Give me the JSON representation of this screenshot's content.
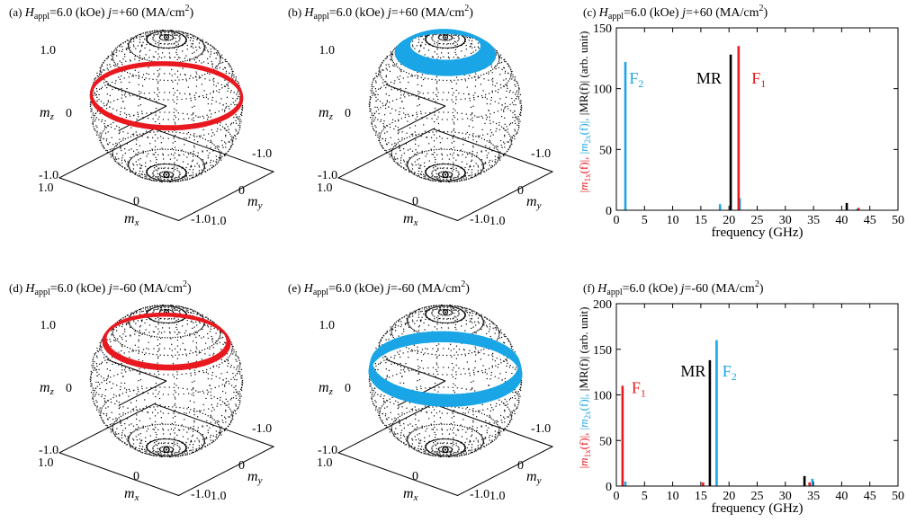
{
  "colors": {
    "red": "#e8191f",
    "cyan": "#1aa6e6",
    "black": "#000000"
  },
  "header_parts": {
    "H": "H",
    "appl": "appl",
    "field": "=6.0 (kOe)",
    "j": "j",
    "cur_pos": "=+60 (MA/cm",
    "cur_neg": "=-60 (MA/cm",
    "sup2": "2",
    "close": ")"
  },
  "sphere_text": {
    "mz_m": "m",
    "mz_sub": "z",
    "mz_zero": "0",
    "mz_top": "1.0",
    "mz_bottom": "-1.0",
    "mx_m": "m",
    "mx_sub": "x",
    "mx_left": "1.0",
    "mx_zero": "0",
    "my_m": "m",
    "my_sub": "y",
    "my_right": "-1.0",
    "my_zero": "0",
    "corner": "-1.0",
    "corner_one": "1.0"
  },
  "ylabel_parts": {
    "bar_open": "|",
    "m": "m",
    "sub1x": "1x",
    "sub2x": "2x",
    "f_arg": "(f)|, ",
    "mr_text": "|MR(f)| (arb. unit)"
  },
  "spheres": [
    {
      "id": "sphere-a",
      "panel": "(a)",
      "current": "+60",
      "ring_color": "red",
      "ring_z": 0.15,
      "ring_width": 0.04
    },
    {
      "id": "sphere-b",
      "panel": "(b)",
      "current": "+60",
      "ring_color": "cyan",
      "ring_z": 0.82,
      "ring_width": 0.12
    },
    {
      "id": "sphere-d",
      "panel": "(d)",
      "current": "-60",
      "ring_color": "red",
      "ring_z": 0.58,
      "ring_width": 0.04
    },
    {
      "id": "sphere-e",
      "panel": "(e)",
      "current": "-60",
      "ring_color": "cyan",
      "ring_z": 0.18,
      "ring_width": 0.14
    }
  ],
  "chart_data": [
    {
      "type": "bar",
      "panel": "(c)",
      "current": "+60",
      "xlabel": "frequency (GHz)",
      "xlim": [
        0,
        50
      ],
      "ylim": [
        0,
        150
      ],
      "xticks": [
        0,
        5,
        10,
        15,
        20,
        25,
        30,
        35,
        40,
        45,
        50
      ],
      "yticks": [
        0,
        50,
        100,
        150
      ],
      "series": [
        {
          "name": "F",
          "sub": "2",
          "color": "cyan",
          "x": [
            1.6,
            18.4,
            21.9,
            42.7
          ],
          "values": [
            122,
            5,
            10,
            1
          ]
        },
        {
          "name": "MR",
          "sub": "",
          "color": "black",
          "x": [
            20.3,
            40.9
          ],
          "values": [
            128,
            6
          ]
        },
        {
          "name": "F",
          "sub": "1",
          "color": "red",
          "x": [
            21.7,
            43.0
          ],
          "values": [
            135,
            2
          ]
        }
      ],
      "labels": [
        {
          "series": 0,
          "x": 2.3,
          "y": 110
        },
        {
          "series": 1,
          "x": 14.2,
          "y": 110
        },
        {
          "series": 2,
          "x": 24.0,
          "y": 110
        }
      ]
    },
    {
      "type": "bar",
      "panel": "(f)",
      "current": "-60",
      "xlabel": "frequency (GHz)",
      "xlim": [
        0,
        50
      ],
      "ylim": [
        0,
        200
      ],
      "xticks": [
        0,
        5,
        10,
        15,
        20,
        25,
        30,
        35,
        40,
        45,
        50
      ],
      "yticks": [
        0,
        50,
        100,
        150,
        200
      ],
      "series": [
        {
          "name": "F",
          "sub": "1",
          "color": "red",
          "x": [
            1.1,
            15.4,
            34.3
          ],
          "values": [
            110,
            4,
            4
          ]
        },
        {
          "name": "MR",
          "sub": "",
          "color": "black",
          "x": [
            16.6,
            33.4
          ],
          "values": [
            138,
            11
          ]
        },
        {
          "name": "F",
          "sub": "2",
          "color": "cyan",
          "x": [
            17.8,
            1.6,
            34.8
          ],
          "values": [
            160,
            5,
            8
          ]
        }
      ],
      "labels": [
        {
          "series": 0,
          "x": 2.7,
          "y": 110
        },
        {
          "series": 1,
          "x": 11.4,
          "y": 128
        },
        {
          "series": 2,
          "x": 18.8,
          "y": 128
        }
      ]
    }
  ]
}
